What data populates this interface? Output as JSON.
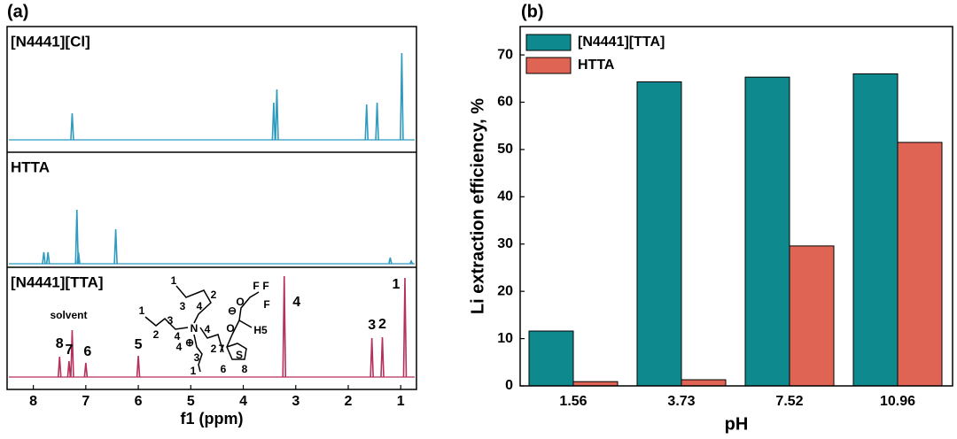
{
  "chart_data": [
    {
      "type": "spectrum",
      "panel_label": "(a)",
      "xlabel": "f1 (ppm)",
      "xlim": [
        8.5,
        0.7
      ],
      "xticks": [
        8,
        7,
        6,
        5,
        4,
        3,
        2,
        1
      ],
      "panels": [
        {
          "label": "[N4441][Cl]",
          "color": "#2e9bbf",
          "x": [
            7.26,
            3.42,
            3.36,
            1.65,
            1.45,
            0.98
          ],
          "values": [
            30,
            42,
            57,
            40,
            42,
            98
          ]
        },
        {
          "label": "HTTA",
          "color": "#2e9bbf",
          "x": [
            7.8,
            7.72,
            7.17,
            7.14,
            6.43,
            1.2,
            0.8
          ],
          "values": [
            13,
            13,
            61,
            13,
            39,
            7,
            3
          ]
        },
        {
          "label": "[N4441][TTA]",
          "color": "#b5305a",
          "x": [
            7.5,
            7.32,
            7.26,
            7.0,
            6.0,
            3.22,
            1.55,
            1.35,
            0.92
          ],
          "values": [
            23,
            18,
            53,
            16,
            24,
            114,
            44,
            45,
            112
          ],
          "peak_labels": [
            "8",
            "7",
            "solvent",
            "6",
            "5",
            "4",
            "3",
            "2",
            "1"
          ]
        }
      ],
      "structure_labels": [
        "1",
        "2",
        "3",
        "4",
        "1",
        "3",
        "2",
        "4",
        "N",
        "4",
        "⊕",
        "4",
        "2",
        "3",
        "1",
        "⊖",
        "O",
        "F",
        "F",
        "F",
        "O",
        "H5",
        "7",
        "S",
        "6",
        "8"
      ]
    },
    {
      "type": "bar",
      "panel_label": "(b)",
      "xlabel": "pH",
      "ylabel": "Li extraction efficiency, %",
      "categories": [
        "1.56",
        "3.73",
        "7.52",
        "10.96"
      ],
      "series": [
        {
          "name": "[N4441][TTA]",
          "color": "#0e8a8f",
          "values": [
            11.6,
            64.3,
            65.3,
            66.0
          ]
        },
        {
          "name": "HTTA",
          "color": "#e06454",
          "values": [
            0.9,
            1.3,
            29.6,
            51.5
          ]
        }
      ],
      "ylim": [
        0,
        76
      ],
      "yticks": [
        0,
        10,
        20,
        30,
        40,
        50,
        60,
        70
      ],
      "legend": "top-left"
    }
  ]
}
